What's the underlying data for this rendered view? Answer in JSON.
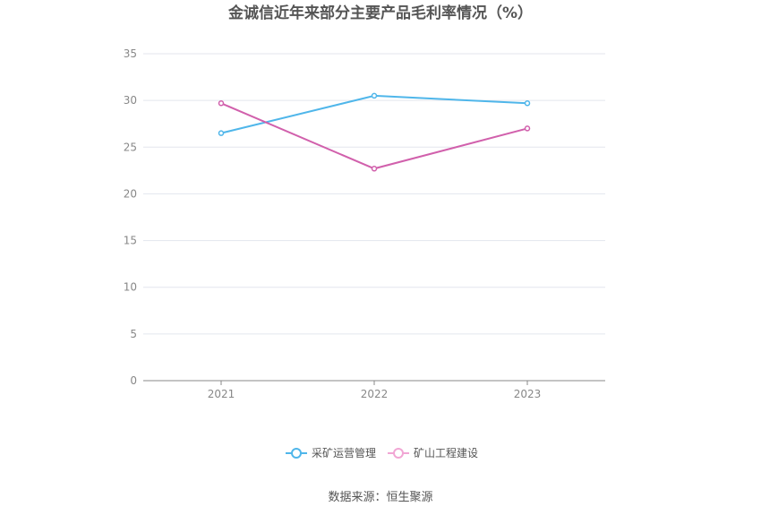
{
  "chart_data": {
    "type": "line",
    "title": "金诚信近年来部分主要产品毛利率情况（%）",
    "x": [
      "2021",
      "2022",
      "2023"
    ],
    "ylim": [
      0,
      35
    ],
    "yticks": [
      "0",
      "5",
      "10",
      "15",
      "20",
      "25",
      "30",
      "35"
    ],
    "grid": true,
    "legend_position": "bottom",
    "series": [
      {
        "name": "采矿运营管理",
        "values": [
          26.5,
          30.5,
          29.7
        ],
        "color": "#4fb6ea"
      },
      {
        "name": "矿山工程建设",
        "values": [
          29.7,
          22.7,
          27.0
        ],
        "color": "#d160ac"
      }
    ],
    "legend_colors": [
      "#4fb6ea",
      "#f1a6d4"
    ],
    "source": "数据来源：恒生聚源"
  }
}
